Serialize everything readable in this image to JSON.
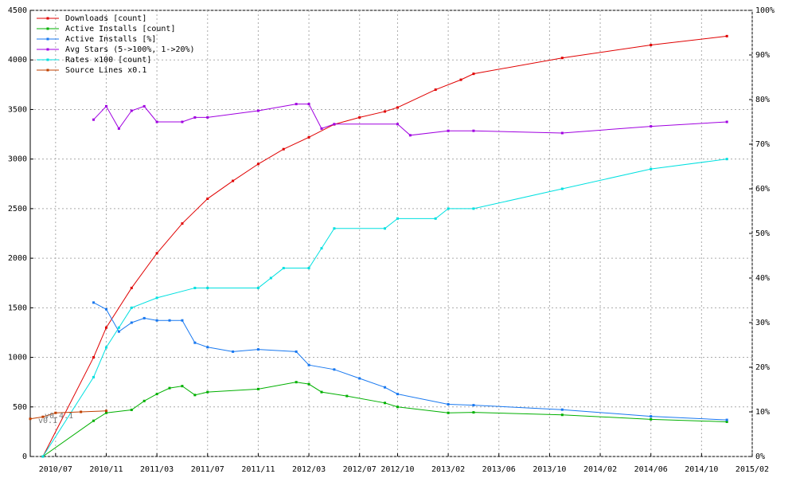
{
  "chart_data": {
    "type": "line",
    "xlim": [
      "2010/05",
      "2015/02"
    ],
    "xticks": [
      "2010/07",
      "2010/11",
      "2011/03",
      "2011/07",
      "2011/11",
      "2012/03",
      "2012/07",
      "2012/10",
      "2013/02",
      "2013/06",
      "2013/10",
      "2014/02",
      "2014/06",
      "2014/10",
      "2015/02"
    ],
    "ylim": [
      0,
      4500
    ],
    "yticks": [
      0,
      500,
      1000,
      1500,
      2000,
      2500,
      3000,
      3500,
      4000,
      4500
    ],
    "y2lim": [
      0,
      100
    ],
    "y2ticks": [
      {
        "value": 0,
        "label": "0%"
      },
      {
        "value": 10,
        "label": "10%"
      },
      {
        "value": 20,
        "label": "20%"
      },
      {
        "value": 30,
        "label": "30%"
      },
      {
        "value": 40,
        "label": "40%"
      },
      {
        "value": 50,
        "label": "50%"
      },
      {
        "value": 60,
        "label": "60%"
      },
      {
        "value": 70,
        "label": "70%"
      },
      {
        "value": 80,
        "label": "80%"
      },
      {
        "value": 90,
        "label": "90%"
      },
      {
        "value": 100,
        "label": "100%"
      }
    ],
    "grid": true,
    "legend": "upper-left",
    "annotations": [
      "v0.1",
      "v0.4.1"
    ],
    "series": [
      {
        "name": "Downloads [count]",
        "color": "#e00000",
        "x": [
          "2010/06",
          "2010/10",
          "2010/11",
          "2011/01",
          "2011/03",
          "2011/05",
          "2011/07",
          "2011/09",
          "2011/11",
          "2012/01",
          "2012/03",
          "2012/05",
          "2012/07",
          "2012/09",
          "2012/10",
          "2013/01",
          "2013/03",
          "2013/04",
          "2013/11",
          "2014/06",
          "2014/12"
        ],
        "values": [
          0,
          1000,
          1300,
          1700,
          2050,
          2350,
          2600,
          2780,
          2950,
          3100,
          3220,
          3350,
          3420,
          3480,
          3520,
          3700,
          3800,
          3860,
          4020,
          4150,
          4240
        ]
      },
      {
        "name": "Active Installs [count]",
        "color": "#00b000",
        "x": [
          "2010/06",
          "2010/10",
          "2010/11",
          "2011/01",
          "2011/02",
          "2011/03",
          "2011/04",
          "2011/05",
          "2011/06",
          "2011/07",
          "2011/11",
          "2012/02",
          "2012/03",
          "2012/04",
          "2012/06",
          "2012/09",
          "2012/10",
          "2013/02",
          "2013/04",
          "2013/11",
          "2014/06",
          "2014/12"
        ],
        "values": [
          0,
          360,
          440,
          470,
          560,
          630,
          690,
          710,
          620,
          650,
          680,
          750,
          730,
          650,
          610,
          540,
          500,
          440,
          445,
          420,
          375,
          350
        ]
      },
      {
        "name": "Active Installs [%]",
        "color": "#1878f0",
        "axis": "y2",
        "x": [
          "2010/10",
          "2010/11",
          "2010/12",
          "2011/01",
          "2011/02",
          "2011/03",
          "2011/04",
          "2011/05",
          "2011/06",
          "2011/07",
          "2011/09",
          "2011/11",
          "2012/02",
          "2012/03",
          "2012/05",
          "2012/07",
          "2012/09",
          "2012/10",
          "2013/02",
          "2013/04",
          "2013/11",
          "2014/06",
          "2014/12"
        ],
        "values": [
          34.5,
          33,
          28,
          30,
          31,
          30.5,
          30.5,
          30.5,
          25.5,
          24.5,
          23.5,
          24,
          23.5,
          20.5,
          19.5,
          17.5,
          15.5,
          14,
          11.7,
          11.5,
          10.5,
          9,
          8.2
        ]
      },
      {
        "name": "Avg Stars (5->100%, 1->20%)",
        "color": "#a000e0",
        "axis": "y2",
        "x": [
          "2010/10",
          "2010/11",
          "2010/12",
          "2011/01",
          "2011/02",
          "2011/03",
          "2011/05",
          "2011/06",
          "2011/07",
          "2011/11",
          "2012/02",
          "2012/03",
          "2012/04",
          "2012/05",
          "2012/10",
          "2012/11",
          "2013/02",
          "2013/04",
          "2013/11",
          "2014/06",
          "2014/12"
        ],
        "values": [
          75.5,
          78.5,
          73.5,
          77.5,
          78.5,
          75,
          75,
          76,
          76,
          77.5,
          79,
          79,
          73.5,
          74.5,
          74.5,
          72,
          73,
          73,
          72.5,
          74,
          75
        ]
      },
      {
        "name": "Rates x100 [count]",
        "color": "#00e0e0",
        "x": [
          "2010/06",
          "2010/10",
          "2010/11",
          "2010/12",
          "2011/01",
          "2011/03",
          "2011/06",
          "2011/07",
          "2011/11",
          "2011/12",
          "2012/01",
          "2012/03",
          "2012/04",
          "2012/05",
          "2012/09",
          "2012/10",
          "2013/01",
          "2013/02",
          "2013/04",
          "2013/11",
          "2014/06",
          "2014/12"
        ],
        "values": [
          0,
          800,
          1100,
          1300,
          1500,
          1600,
          1700,
          1700,
          1700,
          1800,
          1900,
          1900,
          2100,
          2300,
          2300,
          2400,
          2400,
          2500,
          2500,
          2700,
          2900,
          3000
        ]
      },
      {
        "name": "Source Lines x0.1",
        "color": "#c04000",
        "x": [
          "2010/05",
          "2010/06",
          "2010/07",
          "2010/09",
          "2010/11"
        ],
        "values": [
          380,
          400,
          440,
          450,
          460
        ]
      }
    ]
  }
}
